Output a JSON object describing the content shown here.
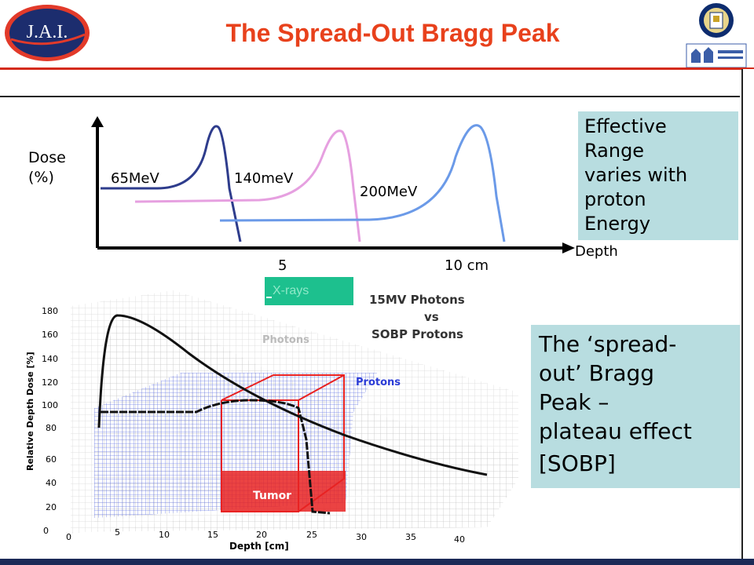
{
  "header": {
    "title": "The Spread-Out Bragg Peak",
    "logo_left_text": "J.A.I."
  },
  "top_chart": {
    "y_label_line1": "Dose",
    "y_label_line2": "(%)",
    "x_label": "Depth",
    "x_ticks": [
      "5",
      "10 cm"
    ],
    "curve_labels": [
      "65MeV",
      "140meV",
      "200MeV"
    ],
    "colors": {
      "65MeV": "#2e3c8c",
      "140meV": "#e6a0e0",
      "200MeV": "#6b9ae8"
    }
  },
  "effective_box": {
    "lines": [
      "Effective",
      "Range",
      "varies with",
      "proton",
      "Energy"
    ]
  },
  "xrays_label": "X-rays",
  "bottom_chart": {
    "title_line1": "15MV Photons",
    "title_line2": "vs",
    "title_line3": "SOBP Protons",
    "label_photons": "Photons",
    "label_protons": "Protons",
    "label_tumor": "Tumor",
    "y_label": "Relative Depth Dose [%]",
    "x_label": "Depth [cm]",
    "y_ticks": [
      "0",
      "20",
      "40",
      "60",
      "80",
      "100",
      "120",
      "140",
      "160",
      "180"
    ],
    "x_ticks": [
      "0",
      "5",
      "10",
      "15",
      "20",
      "25",
      "30",
      "35",
      "40"
    ]
  },
  "sobp_box": {
    "lines": [
      "The ‘spread-",
      "out’ Bragg",
      "Peak –",
      "plateau effect"
    ],
    "tag": "[SOBP]"
  }
}
